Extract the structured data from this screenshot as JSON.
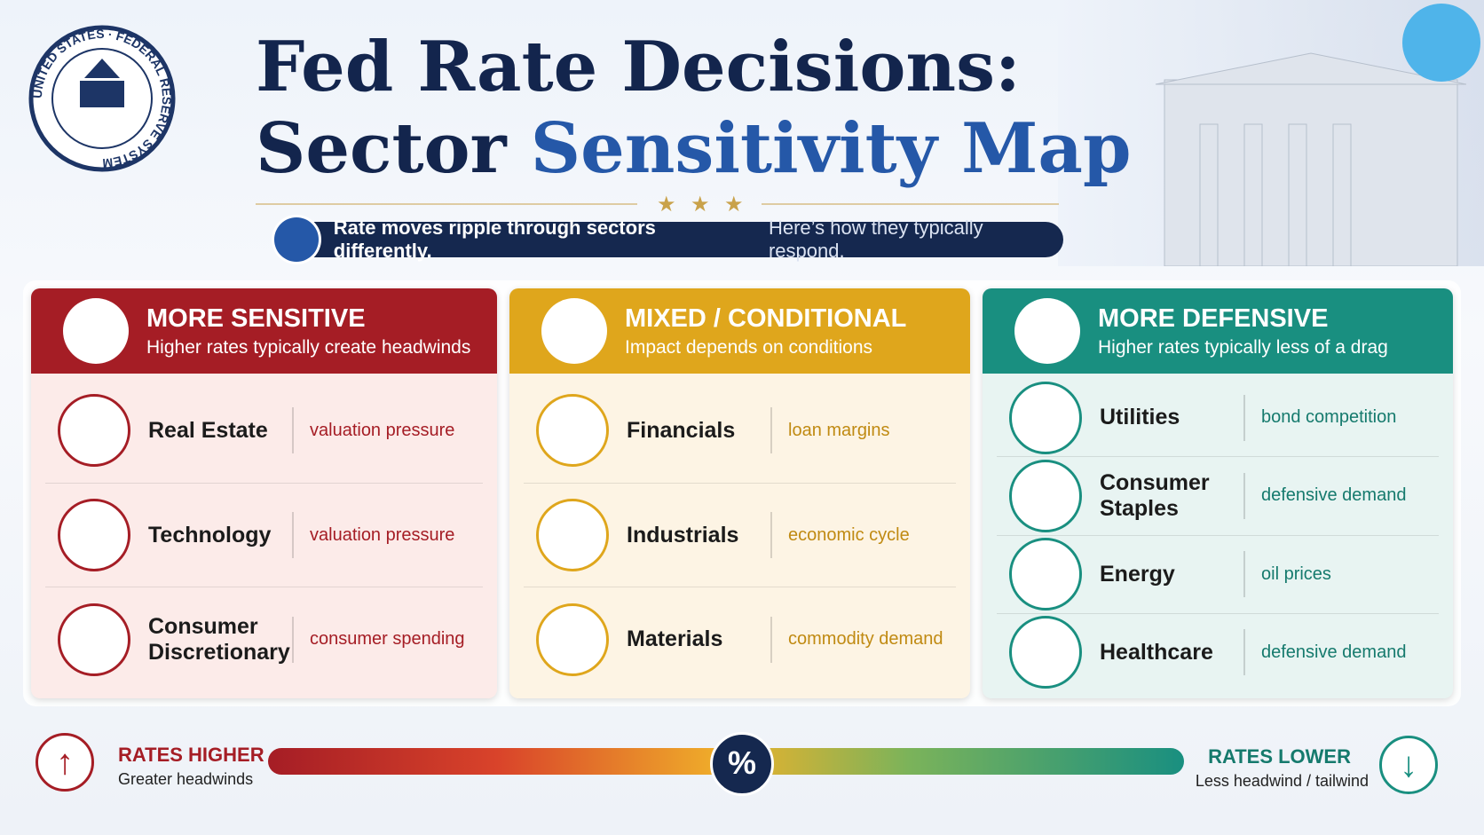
{
  "seal": "UNITED STATES · FEDERAL RESERVE SYSTEM",
  "header": {
    "title_line1": "Fed Rate Decisions:",
    "title_line2_a": "Sector",
    "title_line2_b": "Sensitivity Map",
    "subtitle_bold": "Rate moves ripple through sectors differently.",
    "subtitle_rest": "Here’s how they typically respond."
  },
  "columns": [
    {
      "title": "MORE SENSITIVE",
      "subtitle": "Higher rates typically create headwinds",
      "color": "#a51d25",
      "bg": "#fcebe9",
      "note_color": "#a51d25",
      "items": [
        {
          "name": "Real Estate",
          "note": "valuation pressure"
        },
        {
          "name": "Technology",
          "note": "valuation pressure"
        },
        {
          "name": "Consumer Discretionary",
          "note": "consumer spending"
        }
      ]
    },
    {
      "title": "MIXED / CONDITIONAL",
      "subtitle": "Impact depends on conditions",
      "color": "#dfa61c",
      "bg": "#fdf4e4",
      "note_color": "#c08a12",
      "items": [
        {
          "name": "Financials",
          "note": "loan margins"
        },
        {
          "name": "Industrials",
          "note": "economic cycle"
        },
        {
          "name": "Materials",
          "note": "commodity demand"
        }
      ]
    },
    {
      "title": "MORE DEFENSIVE",
      "subtitle": "Higher rates typically less of a drag",
      "color": "#198f80",
      "bg": "#e8f4f2",
      "note_color": "#157a6d",
      "items": [
        {
          "name": "Utilities",
          "note": "bond competition"
        },
        {
          "name": "Consumer Staples",
          "note": "defensive demand"
        },
        {
          "name": "Energy",
          "note": "oil prices"
        },
        {
          "name": "Healthcare",
          "note": "defensive demand"
        }
      ]
    }
  ],
  "scale": {
    "left_title": "RATES HIGHER",
    "left_sub": "Greater headwinds",
    "center": "%",
    "right_title": "RATES LOWER",
    "right_sub": "Less headwind / tailwind"
  }
}
